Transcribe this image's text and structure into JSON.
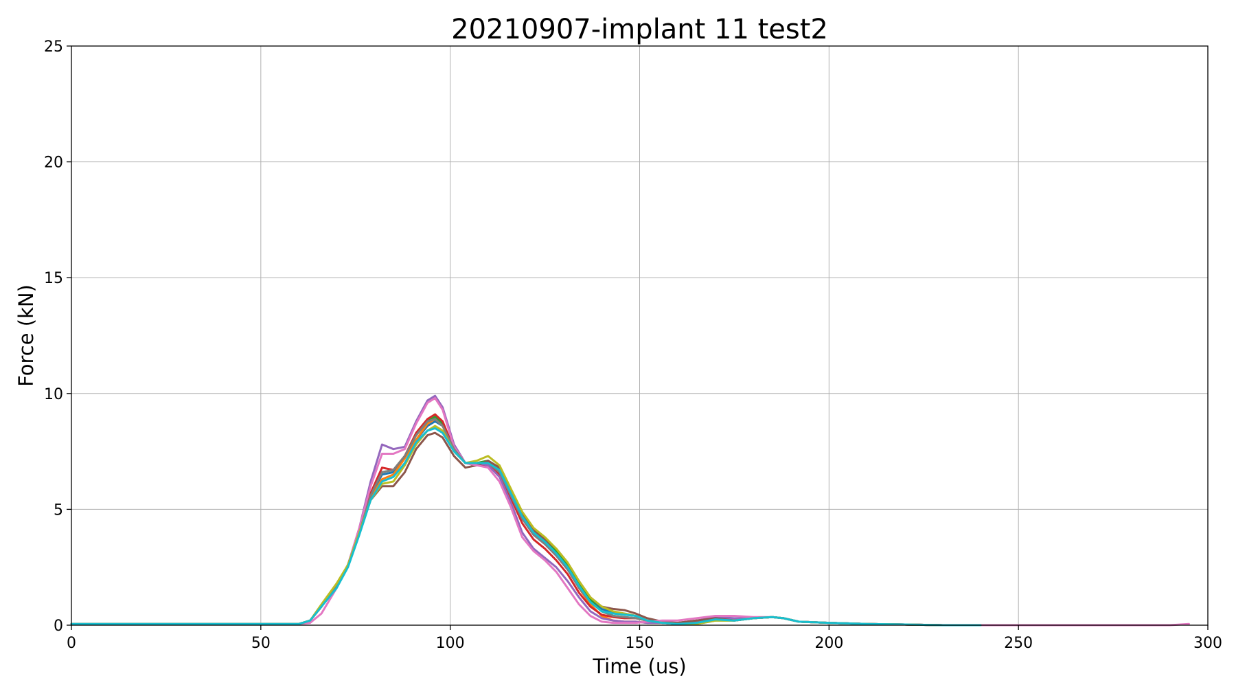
{
  "chart_data": {
    "type": "line",
    "title": "20210907-implant 11 test2",
    "xlabel": "Time (us)",
    "ylabel": "Force (kN)",
    "xlim": [
      0,
      300
    ],
    "ylim": [
      0,
      25
    ],
    "xticks": [
      0,
      50,
      100,
      150,
      200,
      250,
      300
    ],
    "yticks": [
      0,
      5,
      10,
      15,
      20,
      25
    ],
    "grid": true,
    "series": [
      {
        "color": "#1f77b4",
        "x": [
          0,
          60,
          63,
          66,
          70,
          73,
          76,
          79,
          82,
          85,
          88,
          91,
          94,
          96,
          98,
          101,
          104,
          107,
          110,
          113,
          116,
          119,
          122,
          125,
          128,
          131,
          134,
          137,
          140,
          143,
          146,
          149,
          152,
          156,
          160,
          165,
          170,
          175,
          180,
          185,
          188,
          192,
          200,
          210,
          220,
          230,
          240
        ],
        "y": [
          0.05,
          0.05,
          0.2,
          0.8,
          1.7,
          2.6,
          4.0,
          5.6,
          6.5,
          6.6,
          7.3,
          8.0,
          8.6,
          8.8,
          8.6,
          7.6,
          7.0,
          7.0,
          7.0,
          6.6,
          5.6,
          4.6,
          3.9,
          3.5,
          3.0,
          2.4,
          1.7,
          1.1,
          0.7,
          0.55,
          0.5,
          0.4,
          0.2,
          0.1,
          0.05,
          0.2,
          0.3,
          0.2,
          0.3,
          0.35,
          0.3,
          0.15,
          0.1,
          0.05,
          0.03,
          0.0,
          0.0
        ]
      },
      {
        "color": "#ff7f0e",
        "x": [
          0,
          60,
          63,
          66,
          70,
          73,
          76,
          79,
          82,
          85,
          88,
          91,
          94,
          96,
          98,
          101,
          104,
          107,
          110,
          113,
          116,
          119,
          122,
          125,
          128,
          131,
          134,
          137,
          140,
          143,
          146,
          149,
          152,
          156,
          160,
          165,
          170,
          175,
          180,
          185,
          188,
          192,
          200,
          210,
          220,
          230,
          240
        ],
        "y": [
          0.05,
          0.05,
          0.2,
          0.8,
          1.7,
          2.6,
          4.0,
          5.5,
          6.3,
          6.5,
          7.2,
          8.0,
          8.7,
          8.9,
          8.6,
          7.6,
          7.0,
          7.0,
          7.1,
          6.7,
          5.7,
          4.7,
          4.0,
          3.6,
          3.1,
          2.5,
          1.6,
          0.9,
          0.4,
          0.2,
          0.15,
          0.15,
          0.1,
          0.1,
          0.1,
          0.2,
          0.3,
          0.25,
          0.3,
          0.35,
          0.3,
          0.15,
          0.1,
          0.05,
          0.03,
          0.0,
          0.0
        ]
      },
      {
        "color": "#2ca02c",
        "x": [
          0,
          60,
          63,
          66,
          70,
          73,
          76,
          79,
          82,
          85,
          88,
          91,
          94,
          96,
          98,
          101,
          104,
          107,
          110,
          113,
          116,
          119,
          122,
          125,
          128,
          131,
          134,
          137,
          140,
          143,
          146,
          149,
          152,
          156,
          160,
          165,
          170,
          175,
          180,
          185,
          188,
          192,
          200,
          210,
          220,
          230,
          240
        ],
        "y": [
          0.05,
          0.05,
          0.2,
          0.8,
          1.7,
          2.6,
          4.0,
          5.6,
          6.6,
          6.7,
          7.3,
          8.2,
          8.8,
          9.0,
          8.7,
          7.6,
          7.0,
          7.0,
          7.1,
          6.8,
          5.8,
          4.8,
          4.1,
          3.7,
          3.2,
          2.6,
          1.8,
          1.1,
          0.6,
          0.4,
          0.35,
          0.3,
          0.2,
          0.1,
          0.05,
          0.05,
          0.2,
          0.2,
          0.3,
          0.35,
          0.3,
          0.15,
          0.1,
          0.05,
          0.03,
          0.0,
          0.0
        ]
      },
      {
        "color": "#d62728",
        "x": [
          0,
          60,
          63,
          66,
          70,
          73,
          76,
          79,
          82,
          85,
          88,
          91,
          94,
          96,
          98,
          101,
          104,
          107,
          110,
          113,
          116,
          119,
          122,
          125,
          128,
          131,
          134,
          137,
          140,
          143,
          146,
          149,
          152,
          156,
          160,
          165,
          170,
          175,
          180,
          185,
          188,
          192,
          200,
          210,
          220,
          230,
          240
        ],
        "y": [
          0.05,
          0.05,
          0.2,
          0.8,
          1.7,
          2.6,
          4.0,
          5.7,
          6.8,
          6.7,
          7.3,
          8.3,
          8.9,
          9.1,
          8.8,
          7.6,
          7.0,
          6.9,
          6.9,
          6.5,
          5.5,
          4.4,
          3.7,
          3.3,
          2.8,
          2.2,
          1.4,
          0.8,
          0.45,
          0.35,
          0.3,
          0.3,
          0.2,
          0.1,
          0.05,
          0.1,
          0.3,
          0.2,
          0.3,
          0.35,
          0.3,
          0.15,
          0.1,
          0.05,
          0.03,
          0.0,
          0.0
        ]
      },
      {
        "color": "#9467bd",
        "x": [
          0,
          60,
          63,
          66,
          70,
          73,
          76,
          79,
          82,
          85,
          88,
          91,
          94,
          96,
          98,
          101,
          104,
          107,
          110,
          113,
          116,
          119,
          122,
          125,
          128,
          131,
          134,
          137,
          140,
          143,
          146,
          149,
          152,
          156,
          160,
          165,
          170,
          175,
          180,
          185,
          188,
          192,
          200,
          210,
          220,
          230,
          240
        ],
        "y": [
          0.05,
          0.05,
          0.2,
          0.8,
          1.7,
          2.6,
          4.2,
          6.2,
          7.8,
          7.6,
          7.7,
          8.8,
          9.7,
          9.9,
          9.4,
          7.8,
          7.0,
          7.0,
          6.9,
          6.4,
          5.3,
          4.0,
          3.3,
          2.9,
          2.5,
          1.9,
          1.2,
          0.6,
          0.3,
          0.2,
          0.15,
          0.15,
          0.1,
          0.1,
          0.1,
          0.2,
          0.35,
          0.3,
          0.3,
          0.35,
          0.3,
          0.15,
          0.1,
          0.05,
          0.03,
          0.0,
          0.0
        ]
      },
      {
        "color": "#8c564b",
        "x": [
          0,
          60,
          63,
          66,
          70,
          73,
          76,
          79,
          82,
          85,
          88,
          91,
          94,
          96,
          98,
          101,
          104,
          107,
          110,
          113,
          116,
          119,
          122,
          125,
          128,
          131,
          134,
          137,
          140,
          143,
          146,
          149,
          152,
          156,
          160,
          165,
          170,
          175,
          180,
          185,
          188,
          192,
          200,
          210,
          220,
          230,
          240
        ],
        "y": [
          0.05,
          0.05,
          0.2,
          0.8,
          1.7,
          2.6,
          4.0,
          5.4,
          6.0,
          6.0,
          6.6,
          7.6,
          8.2,
          8.3,
          8.1,
          7.3,
          6.8,
          6.9,
          7.1,
          6.8,
          5.8,
          4.8,
          4.1,
          3.7,
          3.3,
          2.7,
          1.9,
          1.2,
          0.8,
          0.7,
          0.65,
          0.5,
          0.3,
          0.15,
          0.1,
          0.2,
          0.3,
          0.2,
          0.3,
          0.35,
          0.3,
          0.15,
          0.1,
          0.05,
          0.03,
          0.0,
          0.0
        ]
      },
      {
        "color": "#e377c2",
        "x": [
          0,
          60,
          63,
          66,
          70,
          73,
          76,
          79,
          82,
          85,
          88,
          91,
          94,
          96,
          98,
          101,
          104,
          107,
          110,
          113,
          116,
          119,
          122,
          125,
          128,
          131,
          134,
          137,
          140,
          143,
          146,
          149,
          152,
          156,
          160,
          165,
          170,
          175,
          180,
          185,
          188,
          192,
          200,
          210,
          220,
          230,
          240,
          290,
          295
        ],
        "y": [
          0.05,
          0.05,
          0.1,
          0.5,
          1.6,
          2.6,
          4.2,
          6.0,
          7.4,
          7.4,
          7.6,
          8.7,
          9.6,
          9.8,
          9.3,
          7.7,
          7.0,
          6.9,
          6.8,
          6.2,
          5.1,
          3.8,
          3.2,
          2.8,
          2.3,
          1.6,
          0.9,
          0.4,
          0.15,
          0.1,
          0.1,
          0.1,
          0.15,
          0.2,
          0.2,
          0.3,
          0.4,
          0.4,
          0.35,
          0.35,
          0.3,
          0.15,
          0.1,
          0.05,
          0.03,
          0.0,
          0.0,
          0.0,
          0.05
        ]
      },
      {
        "color": "#7f7f7f",
        "x": [
          0,
          60,
          63,
          66,
          70,
          73,
          76,
          79,
          82,
          85,
          88,
          91,
          94,
          96,
          98,
          101,
          104,
          107,
          110,
          113,
          116,
          119,
          122,
          125,
          128,
          131,
          134,
          137,
          140,
          143,
          146,
          149,
          152,
          156,
          160,
          165,
          170,
          175,
          180,
          185,
          188,
          192,
          200,
          210,
          220,
          230,
          240
        ],
        "y": [
          0.05,
          0.05,
          0.2,
          0.8,
          1.7,
          2.6,
          4.0,
          5.6,
          6.6,
          6.7,
          7.3,
          8.2,
          8.8,
          8.9,
          8.6,
          7.6,
          7.0,
          7.0,
          7.0,
          6.6,
          5.6,
          4.6,
          3.9,
          3.5,
          3.0,
          2.4,
          1.6,
          1.0,
          0.6,
          0.4,
          0.35,
          0.3,
          0.2,
          0.1,
          0.05,
          0.1,
          0.25,
          0.2,
          0.3,
          0.35,
          0.3,
          0.15,
          0.1,
          0.05,
          0.03,
          0.0,
          0.0
        ]
      },
      {
        "color": "#bcbd22",
        "x": [
          0,
          60,
          63,
          66,
          70,
          73,
          76,
          79,
          82,
          85,
          88,
          91,
          94,
          96,
          98,
          101,
          104,
          107,
          110,
          113,
          116,
          119,
          122,
          125,
          128,
          131,
          134,
          137,
          140,
          143,
          146,
          149,
          152,
          156,
          160,
          165,
          170,
          175,
          180,
          185,
          188,
          192,
          200,
          210,
          220,
          230,
          240
        ],
        "y": [
          0.05,
          0.05,
          0.2,
          0.9,
          1.8,
          2.6,
          4.0,
          5.4,
          6.1,
          6.2,
          6.9,
          7.8,
          8.4,
          8.6,
          8.4,
          7.5,
          7.0,
          7.1,
          7.3,
          6.9,
          5.9,
          4.9,
          4.2,
          3.8,
          3.3,
          2.7,
          1.9,
          1.2,
          0.8,
          0.6,
          0.5,
          0.4,
          0.2,
          0.1,
          0.05,
          0.05,
          0.2,
          0.2,
          0.3,
          0.35,
          0.3,
          0.15,
          0.1,
          0.05,
          0.03,
          0.0,
          0.0
        ]
      },
      {
        "color": "#17becf",
        "x": [
          0,
          60,
          63,
          66,
          70,
          73,
          76,
          79,
          82,
          85,
          88,
          91,
          94,
          96,
          98,
          101,
          104,
          107,
          110,
          113,
          116,
          119,
          122,
          125,
          128,
          131,
          134,
          137,
          140,
          143,
          146,
          149,
          152,
          156,
          160,
          165,
          170,
          175,
          180,
          185,
          188,
          192,
          200,
          210,
          220,
          230,
          240
        ],
        "y": [
          0.05,
          0.05,
          0.2,
          0.8,
          1.6,
          2.5,
          3.9,
          5.4,
          6.2,
          6.4,
          7.0,
          7.9,
          8.4,
          8.5,
          8.3,
          7.5,
          7.0,
          7.0,
          7.0,
          6.7,
          5.7,
          4.7,
          4.0,
          3.6,
          3.1,
          2.5,
          1.7,
          1.0,
          0.6,
          0.5,
          0.45,
          0.4,
          0.2,
          0.1,
          0.05,
          0.1,
          0.25,
          0.2,
          0.3,
          0.35,
          0.3,
          0.15,
          0.1,
          0.05,
          0.03,
          0.0,
          0.0
        ]
      }
    ]
  }
}
